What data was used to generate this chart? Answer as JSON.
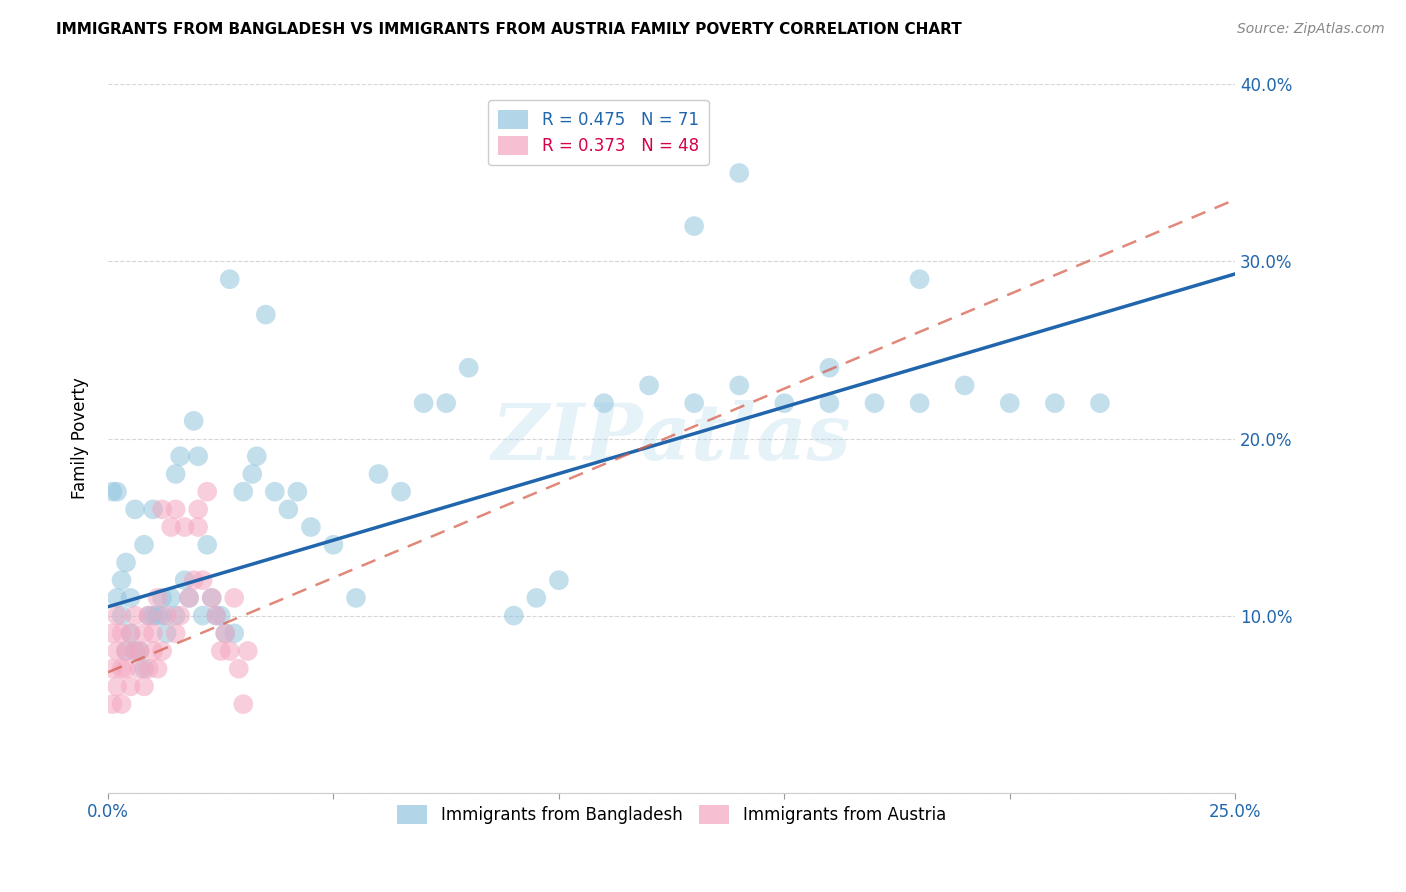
{
  "title": "IMMIGRANTS FROM BANGLADESH VS IMMIGRANTS FROM AUSTRIA FAMILY POVERTY CORRELATION CHART",
  "source": "Source: ZipAtlas.com",
  "ylabel": "Family Poverty",
  "xlabel_blue": "Immigrants from Bangladesh",
  "xlabel_pink": "Immigrants from Austria",
  "xlim": [
    0.0,
    0.25
  ],
  "ylim": [
    0.0,
    0.4
  ],
  "xticks": [
    0.0,
    0.05,
    0.1,
    0.15,
    0.2,
    0.25
  ],
  "yticks": [
    0.0,
    0.1,
    0.2,
    0.3,
    0.4
  ],
  "blue_R": 0.475,
  "blue_N": 71,
  "pink_R": 0.373,
  "pink_N": 48,
  "blue_color": "#92c5de",
  "pink_color": "#f4a6c0",
  "blue_line_color": "#2166ac",
  "pink_line_color": "#d6604d",
  "blue_line_x0": 0.0,
  "blue_line_y0": 0.105,
  "blue_line_x1": 0.25,
  "blue_line_y1": 0.293,
  "pink_line_x0": 0.0,
  "pink_line_y0": 0.068,
  "pink_line_x1": 0.25,
  "pink_line_y1": 0.335,
  "watermark": "ZIPatlas",
  "blue_scatter_x": [
    0.001,
    0.002,
    0.002,
    0.003,
    0.003,
    0.004,
    0.004,
    0.005,
    0.005,
    0.006,
    0.006,
    0.007,
    0.008,
    0.008,
    0.009,
    0.01,
    0.01,
    0.011,
    0.012,
    0.012,
    0.013,
    0.014,
    0.015,
    0.015,
    0.016,
    0.017,
    0.018,
    0.019,
    0.02,
    0.021,
    0.022,
    0.023,
    0.024,
    0.025,
    0.026,
    0.027,
    0.028,
    0.03,
    0.032,
    0.033,
    0.035,
    0.037,
    0.04,
    0.042,
    0.045,
    0.05,
    0.055,
    0.06,
    0.065,
    0.07,
    0.075,
    0.08,
    0.09,
    0.095,
    0.1,
    0.11,
    0.12,
    0.13,
    0.14,
    0.15,
    0.16,
    0.17,
    0.18,
    0.19,
    0.2,
    0.21,
    0.22,
    0.14,
    0.13,
    0.16,
    0.18
  ],
  "blue_scatter_y": [
    0.17,
    0.11,
    0.17,
    0.1,
    0.12,
    0.08,
    0.13,
    0.11,
    0.09,
    0.08,
    0.16,
    0.08,
    0.07,
    0.14,
    0.1,
    0.1,
    0.16,
    0.1,
    0.1,
    0.11,
    0.09,
    0.11,
    0.1,
    0.18,
    0.19,
    0.12,
    0.11,
    0.21,
    0.19,
    0.1,
    0.14,
    0.11,
    0.1,
    0.1,
    0.09,
    0.29,
    0.09,
    0.17,
    0.18,
    0.19,
    0.27,
    0.17,
    0.16,
    0.17,
    0.15,
    0.14,
    0.11,
    0.18,
    0.17,
    0.22,
    0.22,
    0.24,
    0.1,
    0.11,
    0.12,
    0.22,
    0.23,
    0.22,
    0.23,
    0.22,
    0.24,
    0.22,
    0.22,
    0.23,
    0.22,
    0.22,
    0.22,
    0.35,
    0.32,
    0.22,
    0.29
  ],
  "pink_scatter_x": [
    0.001,
    0.001,
    0.001,
    0.002,
    0.002,
    0.002,
    0.003,
    0.003,
    0.003,
    0.004,
    0.004,
    0.005,
    0.005,
    0.006,
    0.006,
    0.007,
    0.007,
    0.008,
    0.008,
    0.009,
    0.009,
    0.01,
    0.01,
    0.011,
    0.011,
    0.012,
    0.012,
    0.013,
    0.014,
    0.015,
    0.015,
    0.016,
    0.017,
    0.018,
    0.019,
    0.02,
    0.02,
    0.021,
    0.022,
    0.023,
    0.024,
    0.025,
    0.026,
    0.027,
    0.028,
    0.029,
    0.03,
    0.031
  ],
  "pink_scatter_y": [
    0.07,
    0.05,
    0.09,
    0.06,
    0.08,
    0.1,
    0.07,
    0.09,
    0.05,
    0.07,
    0.08,
    0.06,
    0.09,
    0.08,
    0.1,
    0.07,
    0.08,
    0.09,
    0.06,
    0.07,
    0.1,
    0.08,
    0.09,
    0.11,
    0.07,
    0.08,
    0.16,
    0.1,
    0.15,
    0.16,
    0.09,
    0.1,
    0.15,
    0.11,
    0.12,
    0.15,
    0.16,
    0.12,
    0.17,
    0.11,
    0.1,
    0.08,
    0.09,
    0.08,
    0.11,
    0.07,
    0.05,
    0.08
  ]
}
